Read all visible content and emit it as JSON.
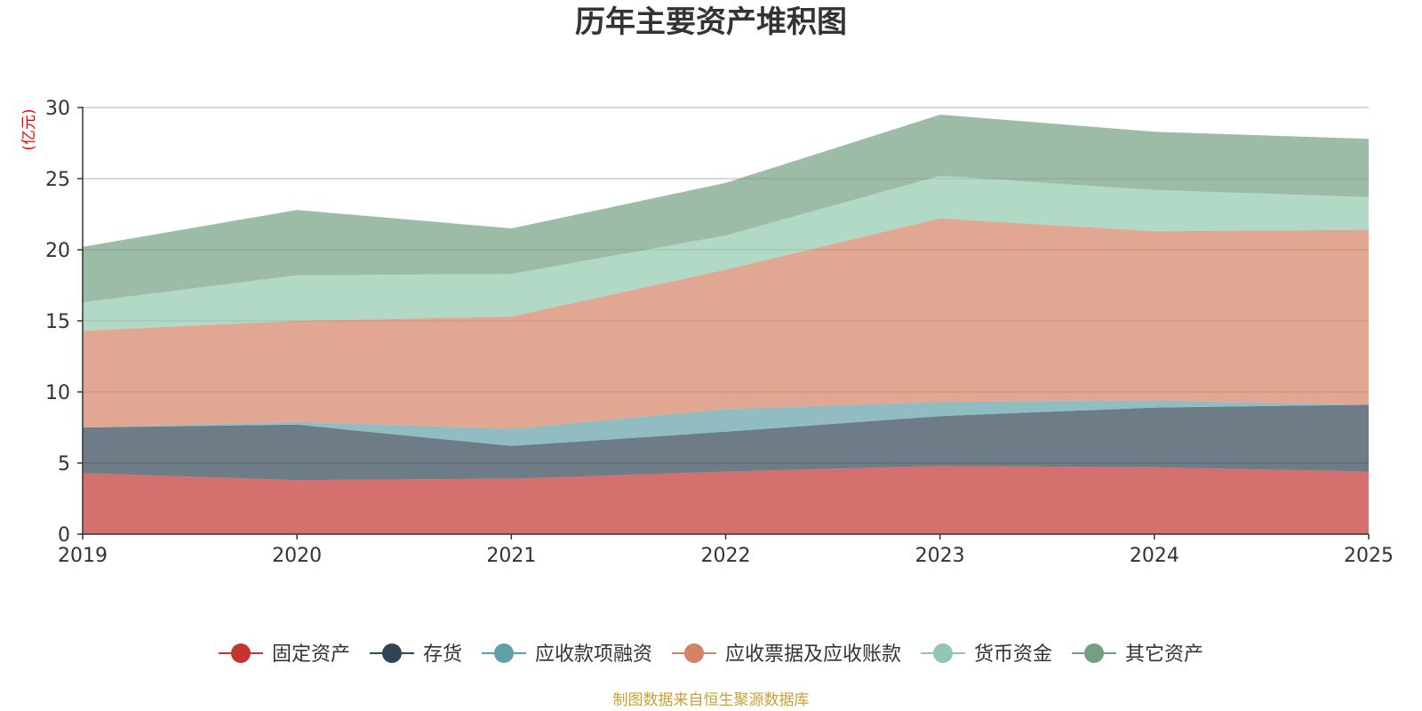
{
  "chart_data": {
    "type": "area",
    "stacked": true,
    "title": "历年主要资产堆积图",
    "ylabel": "(亿元)",
    "xlabel": "",
    "ylim": [
      0,
      30
    ],
    "yticks": [
      0,
      5,
      10,
      15,
      20,
      25,
      30
    ],
    "categories": [
      "2019",
      "2020",
      "2021",
      "2022",
      "2023",
      "2024",
      "2025"
    ],
    "series": [
      {
        "name": "固定资产",
        "color": "#c23531",
        "values": [
          4.3,
          3.8,
          3.9,
          4.4,
          4.8,
          4.7,
          4.4
        ]
      },
      {
        "name": "存货",
        "color": "#2f4554",
        "values": [
          3.2,
          3.9,
          2.3,
          2.8,
          3.5,
          4.2,
          4.7
        ]
      },
      {
        "name": "应收款项融资",
        "color": "#61a0a8",
        "values": [
          0.0,
          0.2,
          1.2,
          1.6,
          1.0,
          0.5,
          0.0
        ]
      },
      {
        "name": "应收票据及应收账款",
        "color": "#d48265",
        "values": [
          6.8,
          7.1,
          7.9,
          9.8,
          12.9,
          11.9,
          12.3
        ]
      },
      {
        "name": "货币资金",
        "color": "#91c7ae",
        "values": [
          2.0,
          3.2,
          3.0,
          2.4,
          3.0,
          2.9,
          2.3
        ]
      },
      {
        "name": "其它资产",
        "color": "#749f83",
        "values": [
          3.9,
          4.6,
          3.2,
          3.7,
          4.3,
          4.1,
          4.1
        ]
      }
    ],
    "legend_position": "bottom-center",
    "grid": true
  },
  "footer": {
    "source": "制图数据来自恒生聚源数据库"
  },
  "colors": {
    "unit_label": "#ff0000",
    "source_text": "#c8a035",
    "axis": "#333333",
    "grid": "#cccccc"
  }
}
